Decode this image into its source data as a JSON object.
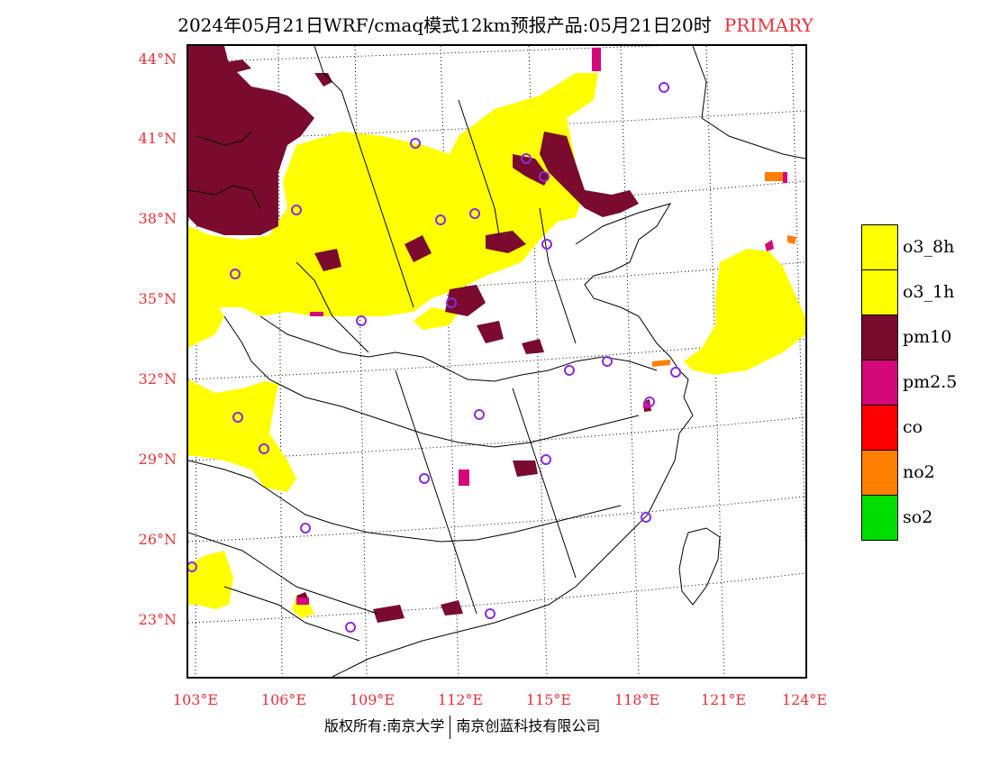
{
  "title": {
    "main": "2024年05月21日WRF/cmaq模式12km预报产品:05月21日20时",
    "tag": "PRIMARY"
  },
  "lat_labels": [
    "44°N",
    "41°N",
    "38°N",
    "35°N",
    "32°N",
    "29°N",
    "26°N",
    "23°N"
  ],
  "lon_labels": [
    "103°E",
    "106°E",
    "109°E",
    "112°E",
    "115°E",
    "118°E",
    "121°E",
    "124°E"
  ],
  "legend": [
    {
      "label": "o3_8h",
      "color": "#ffff00"
    },
    {
      "label": "o3_1h",
      "color": "#ffff00"
    },
    {
      "label": "pm10",
      "color": "#7a0a2e"
    },
    {
      "label": "pm2.5",
      "color": "#d4087a"
    },
    {
      "label": "co",
      "color": "#ff0000"
    },
    {
      "label": "no2",
      "color": "#ff7f00"
    },
    {
      "label": "so2",
      "color": "#00dd00"
    }
  ],
  "footer": {
    "left": "版权所有:南京大学",
    "right": "南京创蓝科技有限公司"
  },
  "colors": {
    "axis_label": "#e8303a",
    "o3": "#ffff00",
    "pm10": "#7a0a2e",
    "pm25": "#d4087a",
    "no2": "#ff7f00",
    "station": "#8a2be2"
  }
}
